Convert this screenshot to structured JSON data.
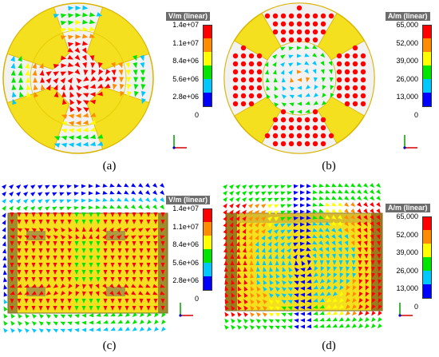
{
  "colors": {
    "scale": [
      "#0000ff",
      "#00c8ff",
      "#00e600",
      "#ffff00",
      "#ff8c00",
      "#ff0000"
    ],
    "geometry_fill": "#f4e01e",
    "background": "#ffffff",
    "hole": "#f2f2f2",
    "shadow": "#7a6a30"
  },
  "panels": [
    {
      "caption": "(a)",
      "legend_title": "V/m (linear)",
      "ticks": [
        "1.4e+07",
        "1.1e+07",
        "8.4e+06",
        "5.6e+06",
        "2.8e+06",
        "0"
      ],
      "field": "electric-vectors"
    },
    {
      "caption": "(b)",
      "legend_title": "A/m (linear)",
      "ticks": [
        "65,000",
        "52,000",
        "39,000",
        "26,000",
        "13,000",
        "0"
      ],
      "field": "magnetic-dots"
    },
    {
      "caption": "(c)",
      "legend_title": "V/m (linear)",
      "ticks": [
        "1.4e+07",
        "1.1e+07",
        "8.4e+06",
        "5.6e+06",
        "2.8e+06",
        "0"
      ],
      "field": "electric-side"
    },
    {
      "caption": "(d)",
      "legend_title": "A/m (linear)",
      "ticks": [
        "65,000",
        "52,000",
        "39,000",
        "26,000",
        "13,000",
        "0"
      ],
      "field": "magnetic-side"
    }
  ]
}
